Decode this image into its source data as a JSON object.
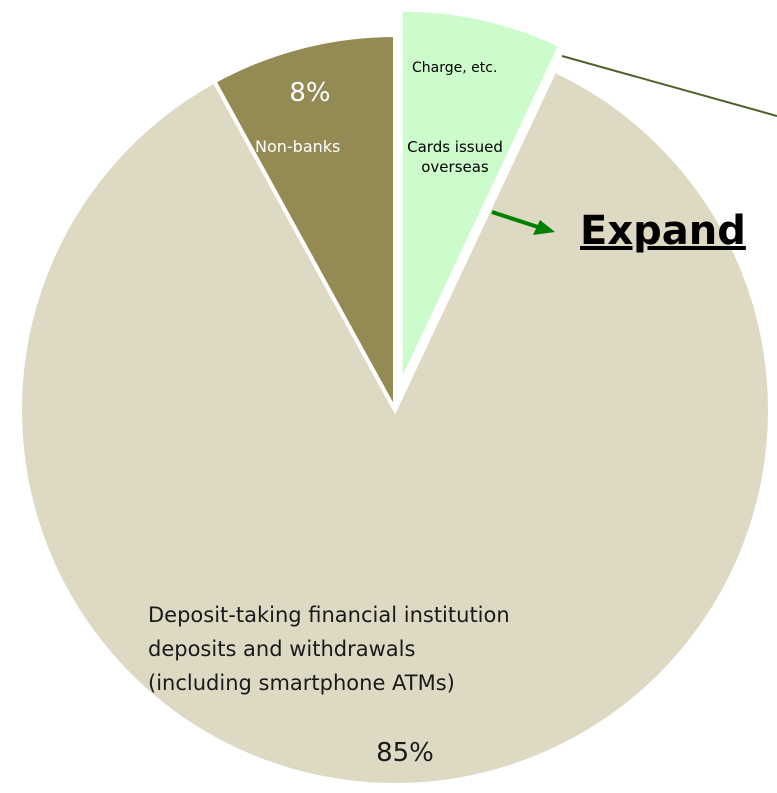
{
  "chart_data": {
    "type": "pie",
    "categories": [
      "Cards issued overseas",
      "Deposit-taking financial institution\ndeposits and withdrawals\n(including smartphone ATMs)",
      "Non-banks"
    ],
    "values": [
      7,
      85,
      8
    ],
    "value_labels": [
      null,
      "85%",
      "8%"
    ],
    "colors": [
      "#ccfccb",
      "#ddd9c3",
      "#948a54"
    ],
    "exploded": [
      true,
      false,
      false
    ],
    "annotations": [
      "Charge, etc.",
      "Expand"
    ]
  }
}
